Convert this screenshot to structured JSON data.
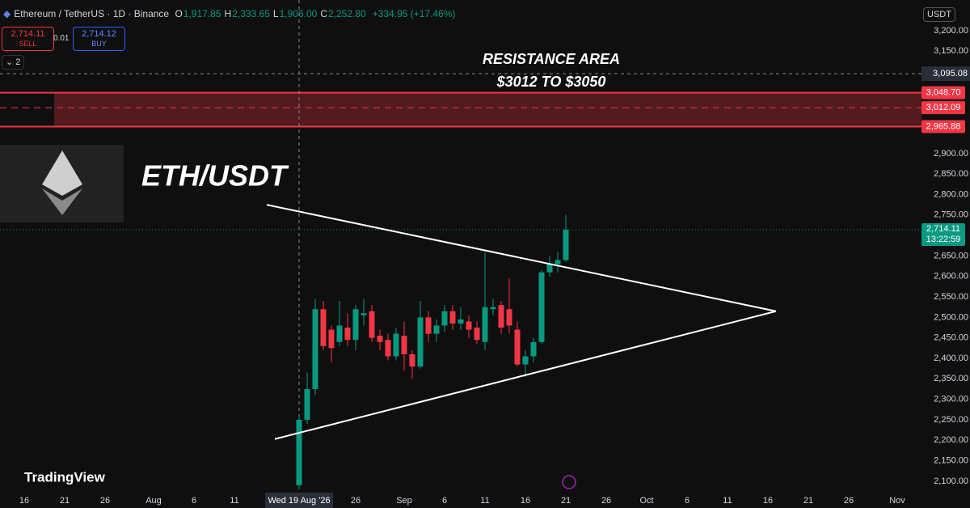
{
  "header": {
    "symbol": "Ethereum / TetherUS · 1D · Binance",
    "ohlc": [
      {
        "key": "O",
        "value": "1,917.85"
      },
      {
        "key": "H",
        "value": "2,333.65"
      },
      {
        "key": "L",
        "value": "1,906.00"
      },
      {
        "key": "C",
        "value": "2,252.80"
      }
    ],
    "change": "+334.95 (+17.46%)",
    "sell_price": "2,714.11",
    "sell": "SELL",
    "spread": "0.01",
    "buy_price": "2,714.12",
    "buy": "BUY",
    "indicators": "2",
    "currency": "USDT"
  },
  "annotations": {
    "resistance_title": "RESISTANCE AREA",
    "resistance_range": "$3012 TO $3050",
    "pair": "ETH/USDT",
    "brand": "TradingView"
  },
  "chart_data": {
    "type": "candlestick",
    "up_color": "#089981",
    "down_color": "#f23645",
    "x": [
      "2026-08-19",
      "2026-08-20",
      "2026-08-21",
      "2026-08-22",
      "2026-08-23",
      "2026-08-24",
      "2026-08-25",
      "2026-08-26",
      "2026-08-27",
      "2026-08-28",
      "2026-08-29",
      "2026-08-30",
      "2026-08-31",
      "2026-09-01",
      "2026-09-02",
      "2026-09-03",
      "2026-09-04",
      "2026-09-05",
      "2026-09-06",
      "2026-09-07",
      "2026-09-08",
      "2026-09-09",
      "2026-09-10",
      "2026-09-11",
      "2026-09-12",
      "2026-09-13",
      "2026-09-14",
      "2026-09-15",
      "2026-09-16",
      "2026-09-17",
      "2026-09-18",
      "2026-09-19",
      "2026-09-20",
      "2026-09-21"
    ],
    "open": [
      2090,
      2250,
      2325,
      2520,
      2470,
      2440,
      2475,
      2445,
      2505,
      2515,
      2455,
      2445,
      2405,
      2455,
      2410,
      2380,
      2500,
      2460,
      2480,
      2515,
      2485,
      2490,
      2475,
      2440,
      2520,
      2530,
      2520,
      2470,
      2385,
      2405,
      2440,
      2610,
      2630,
      2640
    ],
    "high": [
      2260,
      2365,
      2545,
      2540,
      2480,
      2540,
      2510,
      2530,
      2545,
      2530,
      2470,
      2460,
      2475,
      2490,
      2420,
      2540,
      2515,
      2495,
      2530,
      2530,
      2525,
      2505,
      2490,
      2660,
      2545,
      2540,
      2595,
      2490,
      2420,
      2450,
      2615,
      2650,
      2660,
      2750
    ],
    "low": [
      2080,
      2240,
      2310,
      2420,
      2390,
      2430,
      2430,
      2420,
      2480,
      2440,
      2420,
      2395,
      2395,
      2370,
      2350,
      2375,
      2440,
      2440,
      2465,
      2470,
      2470,
      2450,
      2435,
      2420,
      2505,
      2460,
      2460,
      2380,
      2355,
      2390,
      2435,
      2600,
      2610,
      2635
    ],
    "close": [
      2250,
      2325,
      2520,
      2430,
      2425,
      2480,
      2445,
      2520,
      2510,
      2450,
      2440,
      2405,
      2460,
      2410,
      2380,
      2500,
      2460,
      2480,
      2515,
      2485,
      2495,
      2470,
      2445,
      2525,
      2525,
      2475,
      2480,
      2385,
      2405,
      2440,
      2610,
      2630,
      2640,
      2714.11
    ],
    "xlim": [
      "2026-07-13",
      "2026-11-04"
    ],
    "ylim": [
      2080,
      3275
    ],
    "xticks": [
      {
        "value": "2026-07-16",
        "label": "16"
      },
      {
        "value": "2026-07-21",
        "label": "21"
      },
      {
        "value": "2026-07-26",
        "label": "26"
      },
      {
        "value": "2026-08-01",
        "label": "Aug"
      },
      {
        "value": "2026-08-06",
        "label": "6"
      },
      {
        "value": "2026-08-11",
        "label": "11"
      },
      {
        "value": "2026-08-26",
        "label": "26"
      },
      {
        "value": "2026-09-01",
        "label": "Sep"
      },
      {
        "value": "2026-09-06",
        "label": "6"
      },
      {
        "value": "2026-09-11",
        "label": "11"
      },
      {
        "value": "2026-09-16",
        "label": "16"
      },
      {
        "value": "2026-09-21",
        "label": "21"
      },
      {
        "value": "2026-09-26",
        "label": "26"
      },
      {
        "value": "2026-10-01",
        "label": "Oct"
      },
      {
        "value": "2026-10-06",
        "label": "6"
      },
      {
        "value": "2026-10-11",
        "label": "11"
      },
      {
        "value": "2026-10-16",
        "label": "16"
      },
      {
        "value": "2026-10-21",
        "label": "21"
      },
      {
        "value": "2026-10-26",
        "label": "26"
      },
      {
        "value": "2026-11-01",
        "label": "Nov"
      }
    ],
    "yticks": [
      {
        "value": 3200,
        "label": "3,200.00"
      },
      {
        "value": 3150,
        "label": "3,150.00"
      },
      {
        "value": 2900,
        "label": "2,900.00"
      },
      {
        "value": 2850,
        "label": "2,850.00"
      },
      {
        "value": 2800,
        "label": "2,800.00"
      },
      {
        "value": 2750,
        "label": "2,750.00"
      },
      {
        "value": 2650,
        "label": "2,650.00"
      },
      {
        "value": 2600,
        "label": "2,600.00"
      },
      {
        "value": 2550,
        "label": "2,550.00"
      },
      {
        "value": 2500,
        "label": "2,500.00"
      },
      {
        "value": 2450,
        "label": "2,450.00"
      },
      {
        "value": 2400,
        "label": "2,400.00"
      },
      {
        "value": 2350,
        "label": "2,350.00"
      },
      {
        "value": 2300,
        "label": "2,300.00"
      },
      {
        "value": 2250,
        "label": "2,250.00"
      },
      {
        "value": 2200,
        "label": "2,200.00"
      },
      {
        "value": 2150,
        "label": "2,150.00"
      },
      {
        "value": 2100,
        "label": "2,100.00"
      }
    ],
    "price_lines": [
      {
        "value": 3048.7,
        "label": "3,048.70",
        "style": "solid",
        "color": "#f23645"
      },
      {
        "value": 3012.09,
        "label": "3,012.09",
        "style": "dashed",
        "color": "#f23645"
      },
      {
        "value": 2965.88,
        "label": "2,965.88",
        "style": "solid",
        "color": "#f23645"
      }
    ],
    "last_price": {
      "value": 2714.11,
      "label": "2,714.11",
      "countdown": "13:22:59",
      "color": "#089981"
    },
    "crosshair": {
      "x": {
        "value": "2026-08-19",
        "label": "Wed 19 Aug '26"
      },
      "y": {
        "value": 3095.08,
        "label": "3,095.08"
      }
    },
    "trendlines": [
      {
        "x": [
          "2026-08-15",
          "2026-10-17"
        ],
        "y": [
          2775,
          2515
        ]
      },
      {
        "x": [
          "2026-08-16",
          "2026-10-17"
        ],
        "y": [
          2203,
          2515
        ]
      }
    ]
  }
}
